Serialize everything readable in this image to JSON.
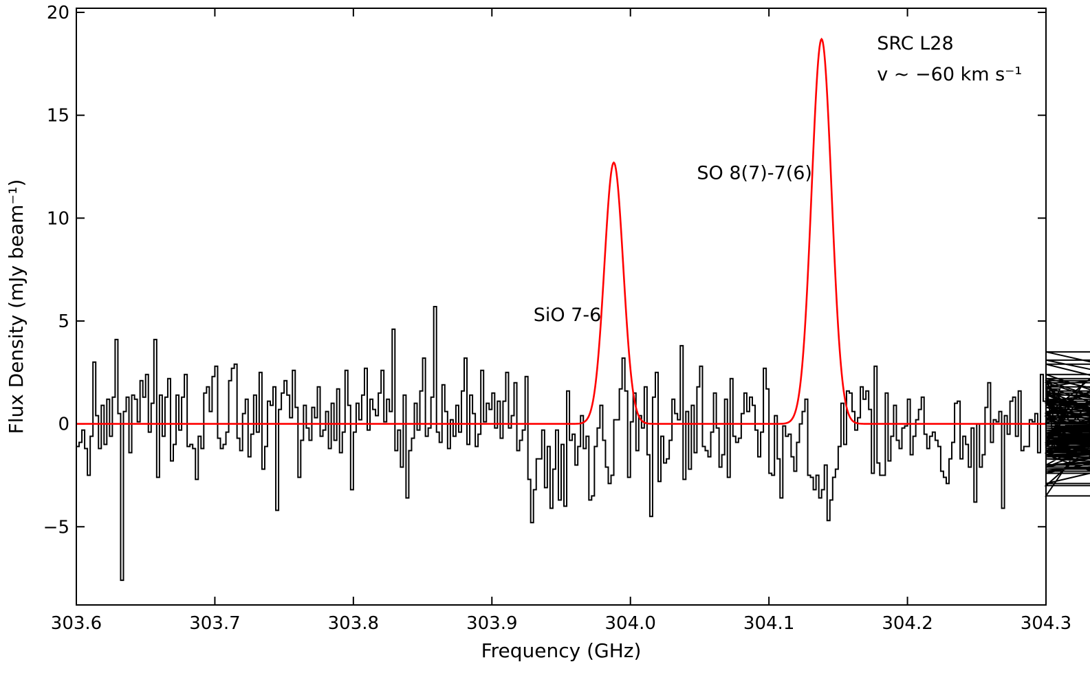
{
  "chart_data": {
    "type": "line",
    "title": "",
    "xlabel": "Frequency (GHz)",
    "ylabel": "Flux Density (mJy beam⁻¹)",
    "xlim": [
      303.6,
      304.3
    ],
    "ylim": [
      -8.8,
      20.2
    ],
    "x_ticks": [
      303.6,
      303.7,
      303.8,
      303.9,
      304.0,
      304.1,
      304.2,
      304.3
    ],
    "x_tick_labels": [
      "303.6",
      "303.7",
      "303.8",
      "303.9",
      "304.0",
      "304.1",
      "304.2",
      "304.3"
    ],
    "y_ticks": [
      -5,
      0,
      5,
      10,
      15,
      20
    ],
    "y_tick_labels": [
      "−5",
      "0",
      "5",
      "10",
      "15",
      "20"
    ],
    "grid": false,
    "annotations": [
      {
        "text": "SiO 7-6",
        "x": 303.93,
        "y": 5.0
      },
      {
        "text": "SO 8(7)-7(6)",
        "x": 304.048,
        "y": 11.9
      },
      {
        "text": "SRC L28",
        "x": 304.178,
        "y": 18.2
      },
      {
        "text": "v ~ −60 km s⁻¹",
        "x": 304.178,
        "y": 16.7
      }
    ],
    "series": [
      {
        "style": "step",
        "color": "#000000",
        "x_start": 303.6,
        "x_step": 0.002,
        "values": [
          -1.1,
          -0.9,
          -0.3,
          -1.2,
          -2.5,
          -0.6,
          3.0,
          0.4,
          -1.2,
          0.9,
          -1.0,
          1.2,
          -0.6,
          1.3,
          4.1,
          0.5,
          -7.6,
          0.6,
          1.3,
          -1.4,
          1.4,
          1.2,
          0.1,
          2.1,
          1.3,
          2.4,
          -0.4,
          1.0,
          4.1,
          -2.6,
          1.4,
          -0.6,
          1.3,
          2.2,
          -1.8,
          -1.0,
          1.4,
          -0.3,
          1.3,
          2.4,
          -1.1,
          -1.0,
          -1.2,
          -2.7,
          -0.6,
          -1.2,
          1.5,
          1.8,
          0.6,
          2.3,
          2.8,
          -0.7,
          -1.2,
          -1.0,
          -0.4,
          2.1,
          2.7,
          2.9,
          -0.7,
          -1.3,
          0.5,
          1.2,
          -1.6,
          -0.5,
          1.4,
          -0.4,
          2.5,
          -2.2,
          -1.1,
          1.1,
          0.9,
          1.8,
          -4.2,
          0.7,
          1.5,
          2.1,
          1.4,
          0.3,
          2.6,
          0.8,
          -2.6,
          -0.8,
          0.9,
          -0.2,
          -0.8,
          0.8,
          0.3,
          1.8,
          -0.6,
          -0.3,
          0.6,
          -1.2,
          1.0,
          -0.8,
          1.7,
          -1.4,
          -0.4,
          2.6,
          0.9,
          -3.2,
          -0.4,
          1.0,
          0.2,
          1.4,
          2.7,
          -0.3,
          1.2,
          0.7,
          0.4,
          1.5,
          2.6,
          0.1,
          1.2,
          0.6,
          4.6,
          -1.3,
          -0.3,
          -2.1,
          1.4,
          -3.6,
          -1.3,
          -0.7,
          1.0,
          -0.3,
          1.6,
          3.2,
          -0.6,
          -0.2,
          1.3,
          5.7,
          -0.4,
          -0.9,
          1.9,
          0.6,
          -1.2,
          0.2,
          -0.6,
          0.9,
          -0.4,
          1.6,
          3.2,
          -1.0,
          1.4,
          0.5,
          -1.1,
          -0.5,
          2.6,
          0.1,
          1.0,
          0.7,
          1.5,
          -0.2,
          1.1,
          -0.7,
          1.1,
          2.5,
          -0.2,
          0.4,
          2.0,
          -1.3,
          -0.8,
          -0.3,
          2.3,
          -2.7,
          -4.8,
          -3.2,
          -1.7,
          -1.7,
          -0.3,
          -3.1,
          -1.1,
          -4.1,
          -2.2,
          -0.3,
          -3.7,
          -1.0,
          -4.0,
          1.6,
          -0.8,
          -0.5,
          -2.0,
          -1.1,
          0.4,
          -1.2,
          -0.6,
          -3.7,
          -3.5,
          -1.1,
          -0.2,
          0.9,
          -0.8,
          -2.1,
          -2.9,
          -2.5,
          0.2,
          0.2,
          1.7,
          3.2,
          1.6,
          -2.6,
          0.1,
          1.5,
          -1.3,
          0.4,
          -0.2,
          1.8,
          -1.5,
          -4.5,
          1.3,
          2.5,
          -2.8,
          -0.6,
          -1.9,
          -1.7,
          -0.8,
          1.2,
          0.5,
          0.2,
          3.8,
          -2.7,
          0.6,
          -2.2,
          0.9,
          -1.4,
          1.8,
          2.8,
          -1.1,
          -1.3,
          -1.6,
          -0.4,
          1.5,
          -0.2,
          -2.1,
          -1.5,
          1.2,
          -2.6,
          2.2,
          -0.6,
          -0.9,
          -0.7,
          0.5,
          1.5,
          0.6,
          1.3,
          0.9,
          -0.3,
          -1.6,
          -0.4,
          2.7,
          1.7,
          -2.4,
          -2.5,
          0.4,
          -1.7,
          -3.6,
          -0.1,
          -0.6,
          -0.5,
          -1.6,
          -2.3,
          -0.9,
          0.0,
          0.6,
          1.2,
          -2.5,
          -2.6,
          -3.2,
          -2.5,
          -3.6,
          -3.2,
          -2.0,
          -4.7,
          -3.7,
          -2.6,
          -2.2,
          -1.1,
          1.0,
          -1.0,
          1.6,
          1.5,
          0.6,
          -0.3,
          0.3,
          1.8,
          1.2,
          1.6,
          0.7,
          -2.4,
          2.8,
          -1.9,
          -2.5,
          -2.5,
          1.5,
          -1.8,
          -0.6,
          0.9,
          -0.8,
          -1.2,
          -0.2,
          -0.1,
          1.2,
          -1.5,
          -0.6,
          0.2,
          0.7,
          1.3,
          -0.5,
          -1.2,
          -0.6,
          -0.4,
          -0.8,
          -1.1,
          -2.3,
          -2.6,
          -2.9,
          -1.7,
          -0.9,
          1.0,
          1.1,
          -1.7,
          -0.6,
          -1.0,
          -2.1,
          -0.2,
          -3.8,
          0.0,
          -2.1,
          -1.5,
          0.8,
          2.0,
          -0.9,
          0.2,
          0.1,
          0.6,
          -4.1,
          0.4,
          -0.5,
          1.1,
          1.3,
          -0.6,
          1.6,
          -1.3,
          -1.1,
          -1.1,
          0.2,
          0.1,
          0.5,
          -1.4,
          2.4,
          1.1,
          1.5,
          0.9,
          2.0,
          -1.1,
          0.1,
          1.7,
          -1.4,
          -0.9,
          1.0,
          0.5,
          -0.9,
          1.0,
          -0.6,
          -1.0,
          2.1,
          -1.4,
          1.1,
          1.4,
          0.5,
          1.8,
          1.8,
          2.2,
          1.6,
          0.4,
          3.1,
          2.4,
          1.2,
          -3.5,
          2.0,
          -2.4,
          -1.5,
          -3.0,
          0.8,
          -0.4,
          -0.9,
          -2.0,
          0.6,
          0.3,
          -0.7,
          1.8,
          0.0,
          2.9,
          1.5,
          0.9,
          1.1,
          0.6,
          1.1,
          0.2,
          -0.9,
          -2.2,
          -2.0,
          -1.5,
          0.2,
          1.4,
          -0.8,
          -0.9,
          -1.3,
          0.8,
          -0.8,
          -1.7,
          -2.1,
          -0.5,
          2.1,
          -0.7,
          -1.1,
          3.5,
          1.5,
          -2.1,
          1.4,
          -1.2,
          0.4,
          -1.5,
          -2.9,
          -0.6,
          2.0,
          -1.2,
          -2.0,
          -1.5,
          -1.2,
          -0.8,
          -1.5,
          -2.3,
          -1.2,
          -0.3,
          -0.5,
          -1.4,
          0.6,
          -0.4,
          -0.4,
          0.6,
          -1.5,
          -1.4,
          -0.8,
          -0.3,
          0.0,
          0.8,
          -0.3,
          -0.5,
          -0.3,
          -1.6,
          -1.0,
          -0.9,
          0.4,
          -0.3,
          -1.0,
          1.0,
          -1.0,
          -0.7,
          -1.1,
          -1.3,
          -1.1,
          -0.9,
          0.1,
          -0.1,
          -0.9,
          -0.3,
          -0.5,
          -0.4,
          -0.2,
          -1.0,
          -0.2,
          -0.1,
          -0.5,
          -0.8,
          -0.5,
          -0.6,
          -0.2,
          -0.7,
          0.0,
          -0.1,
          -0.1,
          -0.6,
          -0.6,
          -0.2,
          -0.7,
          -0.1,
          -0.5,
          -0.4,
          -0.2,
          -0.7,
          -0.9,
          -0.3,
          -0.7,
          -0.1,
          -0.3,
          -0.2,
          -0.6,
          -0.5,
          -0.3,
          -1.0,
          -0.6,
          -0.2,
          -0.5,
          -0.3,
          -0.5,
          -0.4,
          -0.2,
          -0.8,
          -0.7
        ]
      },
      {
        "name": "",
        "style": "gaussian-fit",
        "color": "#ff0000",
        "baseline": 0,
        "components": [
          {
            "center": 303.988,
            "amplitude": 12.7,
            "sigma": 0.0068
          },
          {
            "center": 304.138,
            "amplitude": 18.7,
            "sigma": 0.0072
          }
        ]
      }
    ]
  }
}
